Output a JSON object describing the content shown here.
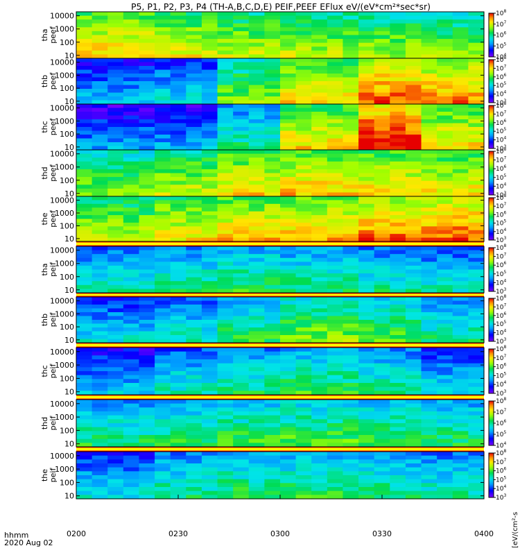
{
  "title": "P5, P1, P2, P3, P4 (TH-A,B,C,D,E) PEIF,PEEF EFlux eV/(eV*cm²*sec*sr)",
  "time_axis_label": "hhmm",
  "date_label": "2020 Aug 02",
  "colorbar_unit_label": "[eV/(cm²-s",
  "colors": {
    "frame": "#000000",
    "separator": "#ffff00",
    "flag": "#ff0000",
    "background": "#ffffff"
  },
  "chart_data": {
    "type": "heatmap",
    "title": "P5, P1, P2, P3, P4 (TH-A,B,C,D,E) PEIF,PEEF EFlux eV/(eV*cm²*sec*sr)",
    "x_ticks": [
      "0200",
      "0230",
      "0300",
      "0330",
      "0400"
    ],
    "x_range": [
      "0200",
      "0400"
    ],
    "y_scale": "log",
    "y_ticks": [
      10,
      100,
      1000,
      10000
    ],
    "panels": [
      {
        "probe": "tha",
        "species": "peef",
        "ylabel": "tha\npeef",
        "clim_exp": [
          4,
          8
        ],
        "colorbar_ticks_exp": [
          4,
          5,
          6,
          7,
          8
        ],
        "levels": [
          0.72,
          0.66,
          0.62,
          0.6,
          0.58,
          0.55
        ]
      },
      {
        "probe": "thb",
        "species": "peef",
        "ylabel": "thb\npeef",
        "clim_exp": [
          3,
          8
        ],
        "colorbar_ticks_exp": [
          3,
          4,
          5,
          6,
          7,
          8
        ],
        "levels": [
          0.25,
          0.3,
          0.55,
          0.7,
          0.82,
          0.78
        ]
      },
      {
        "probe": "thc",
        "species": "peef",
        "ylabel": "thc\npeef",
        "clim_exp": [
          3,
          8
        ],
        "colorbar_ticks_exp": [
          3,
          4,
          5,
          6,
          7,
          8
        ],
        "levels": [
          0.2,
          0.22,
          0.4,
          0.7,
          0.92,
          0.7
        ]
      },
      {
        "probe": "thd",
        "species": "peef",
        "ylabel": "thd\npeef",
        "clim_exp": [
          3,
          8
        ],
        "colorbar_ticks_exp": [
          3,
          4,
          5,
          6,
          7,
          8
        ],
        "levels": [
          0.55,
          0.62,
          0.7,
          0.72,
          0.7,
          0.68
        ]
      },
      {
        "probe": "the",
        "species": "peef",
        "ylabel": "the\npeef",
        "clim_exp": [
          3,
          8
        ],
        "colorbar_ticks_exp": [
          3,
          4,
          5,
          6,
          7,
          8
        ],
        "levels": [
          0.62,
          0.68,
          0.72,
          0.75,
          0.8,
          0.82
        ]
      },
      {
        "probe": "tha",
        "species": "peif",
        "ylabel": "tha\npeif",
        "clim_exp": [
          3,
          8
        ],
        "colorbar_ticks_exp": [
          3,
          4,
          5,
          6,
          7,
          8
        ],
        "levels": [
          0.36,
          0.4,
          0.45,
          0.42,
          0.38,
          0.34
        ]
      },
      {
        "probe": "thb",
        "species": "peif",
        "ylabel": "thb\npeif",
        "clim_exp": [
          3,
          8
        ],
        "colorbar_ticks_exp": [
          3,
          4,
          5,
          6,
          7,
          8
        ],
        "levels": [
          0.3,
          0.35,
          0.45,
          0.55,
          0.5,
          0.4
        ]
      },
      {
        "probe": "thc",
        "species": "peif",
        "ylabel": "thc\npeif",
        "clim_exp": [
          3,
          8
        ],
        "colorbar_ticks_exp": [
          3,
          4,
          5,
          6,
          7,
          8
        ],
        "levels": [
          0.25,
          0.35,
          0.4,
          0.45,
          0.4,
          0.3
        ]
      },
      {
        "probe": "thd",
        "species": "peif",
        "ylabel": "thd\npeif",
        "clim_exp": [
          4,
          8
        ],
        "colorbar_ticks_exp": [
          4,
          5,
          6,
          7,
          8
        ],
        "levels": [
          0.42,
          0.45,
          0.48,
          0.5,
          0.48,
          0.44
        ]
      },
      {
        "probe": "the",
        "species": "peif",
        "ylabel": "the\npeif",
        "clim_exp": [
          3,
          8
        ],
        "colorbar_ticks_exp": [
          3,
          4,
          5,
          6,
          7,
          8
        ],
        "levels": [
          0.3,
          0.4,
          0.45,
          0.45,
          0.42,
          0.38
        ]
      }
    ],
    "legend": "colorbars-right"
  }
}
